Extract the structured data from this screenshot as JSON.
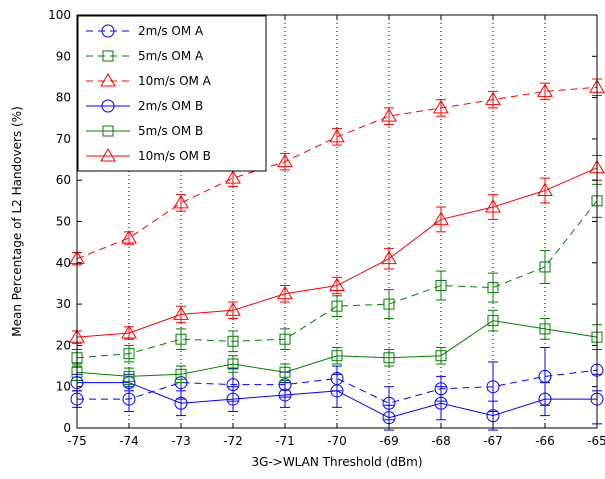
{
  "chart_data": {
    "type": "line",
    "title": "",
    "xlabel": "3G->WLAN Threshold (dBm)",
    "ylabel": "Mean Percentage of L2 Handovers (%)",
    "x": [
      -75,
      -74,
      -73,
      -72,
      -71,
      -70,
      -69,
      -68,
      -67,
      -66,
      -65
    ],
    "x_ticks": [
      "-75",
      "-74",
      "-73",
      "-72",
      "-71",
      "-70",
      "-69",
      "-68",
      "-67",
      "-66",
      "-65"
    ],
    "y_ticks": [
      "0",
      "10",
      "20",
      "30",
      "40",
      "50",
      "60",
      "70",
      "80",
      "90",
      "100"
    ],
    "xlim": [
      -75,
      -65
    ],
    "ylim": [
      0,
      100
    ],
    "grid": "vertical dotted lines",
    "legend_position": "top-left",
    "series": [
      {
        "name": "2m/s OM A",
        "color": "#0000ff",
        "dash": "dashed",
        "marker": "circle",
        "values": [
          7,
          7,
          11,
          10.5,
          10.5,
          12,
          6,
          9.5,
          10,
          12.5,
          14
        ],
        "err": [
          2,
          3,
          4,
          4,
          3,
          3,
          4,
          3,
          6,
          7,
          5
        ]
      },
      {
        "name": "5m/s OM A",
        "color": "#008000",
        "dash": "dashed",
        "marker": "square",
        "values": [
          17,
          18,
          21.5,
          21,
          21.5,
          29.5,
          30,
          34.5,
          34,
          39,
          55
        ],
        "err": [
          2,
          2,
          2.5,
          2.5,
          2.5,
          2.5,
          3.5,
          3.5,
          3.5,
          4,
          4
        ]
      },
      {
        "name": "10m/s OM A",
        "color": "#ff0000",
        "dash": "dashed",
        "marker": "triangle",
        "values": [
          41,
          46,
          54.5,
          60.5,
          64.5,
          70.5,
          75.5,
          77.5,
          79.5,
          81.5,
          82.5
        ],
        "err": [
          1.5,
          1.5,
          2,
          2,
          2,
          2,
          2,
          2,
          2,
          2,
          2
        ]
      },
      {
        "name": "2m/s OM B",
        "color": "#0000ff",
        "dash": "solid",
        "marker": "circle",
        "values": [
          11,
          11,
          6,
          7,
          8,
          9,
          2.5,
          6,
          3,
          7,
          7
        ],
        "err": [
          2,
          2,
          3,
          3,
          3,
          4,
          3,
          4,
          3.5,
          4,
          6
        ]
      },
      {
        "name": "5m/s OM B",
        "color": "#008000",
        "dash": "solid",
        "marker": "square",
        "values": [
          13.5,
          12.5,
          13,
          15.5,
          13.5,
          17.5,
          17,
          17.5,
          26,
          24,
          22
        ],
        "err": [
          2,
          2,
          2,
          2,
          2,
          2,
          2,
          2,
          2.5,
          2.5,
          3
        ]
      },
      {
        "name": "10m/s OM B",
        "color": "#ff0000",
        "dash": "solid",
        "marker": "triangle",
        "values": [
          22,
          23,
          27.5,
          28.5,
          32.5,
          34.5,
          41,
          50.5,
          53.5,
          57.5,
          63
        ],
        "err": [
          1.5,
          1.5,
          2,
          2,
          2,
          2,
          2.5,
          3,
          3,
          3,
          3
        ]
      }
    ]
  }
}
